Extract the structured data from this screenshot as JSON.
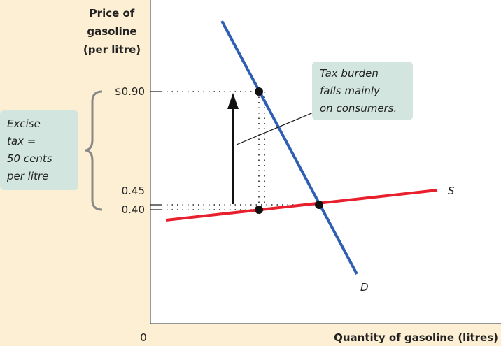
{
  "y_axis_label": [
    "Price of",
    "gasoline",
    "(per litre)"
  ],
  "x_axis_label": "Quantity of gasoline (litres)",
  "origin": "0",
  "price_labels": [
    "$0.90",
    "0.45",
    "0.40"
  ],
  "curve_labels": {
    "supply": "S",
    "demand": "D"
  },
  "callout": [
    "Tax burden",
    "falls mainly",
    "on consumers."
  ],
  "tax_note": [
    "Excise",
    "tax =",
    "50 cents",
    "per litre"
  ]
}
